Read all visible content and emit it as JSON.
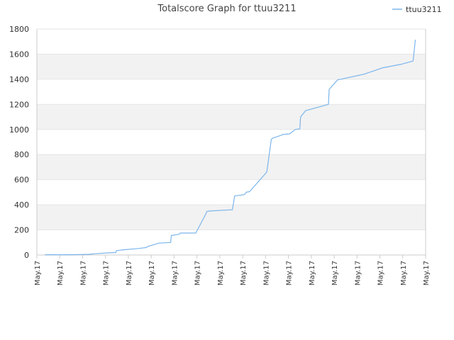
{
  "chart_data": {
    "type": "line",
    "title": "Totalscore Graph for ttuu3211",
    "xlabel": "",
    "ylabel": "",
    "ylim": [
      0,
      1800
    ],
    "yticks": [
      0,
      200,
      400,
      600,
      800,
      1000,
      1200,
      1400,
      1600,
      1800
    ],
    "xtick_labels": [
      "May.17",
      "May.17",
      "May.17",
      "May.17",
      "May.17",
      "May.17",
      "May.17",
      "May.17",
      "May.17",
      "May.17",
      "May.17",
      "May.17",
      "May.17",
      "May.17",
      "May.17",
      "May.17",
      "May.17",
      "May.17"
    ],
    "xlim": [
      0,
      17
    ],
    "grid": true,
    "band_fill": "#f2f2f2",
    "legend_position": "top-right",
    "series": [
      {
        "name": "ttuu3211",
        "color": "#7cb5ec",
        "x": [
          0.35,
          1.5,
          2.2,
          2.25,
          2.55,
          3.1,
          3.45,
          3.48,
          3.8,
          4.45,
          4.8,
          4.82,
          4.85,
          5.35,
          5.85,
          5.88,
          6.2,
          6.25,
          6.27,
          6.95,
          7.4,
          7.42,
          7.5,
          8.5,
          8.55,
          8.65,
          9.05,
          9.1,
          9.15,
          9.3,
          10.05,
          10.1,
          10.25,
          10.3,
          10.7,
          10.75,
          11.05,
          11.3,
          11.5,
          11.53,
          11.75,
          12.75,
          12.78,
          13.15,
          14.3,
          15.1,
          15.95,
          16.45,
          16.48,
          16.55
        ],
        "y": [
          2,
          2,
          5,
          5,
          10,
          17,
          20,
          35,
          42,
          52,
          60,
          65,
          68,
          95,
          100,
          155,
          165,
          170,
          175,
          175,
          330,
          345,
          350,
          360,
          360,
          470,
          480,
          485,
          500,
          505,
          660,
          720,
          920,
          930,
          955,
          960,
          965,
          1000,
          1005,
          1100,
          1150,
          1200,
          1320,
          1395,
          1440,
          1490,
          1520,
          1545,
          1590,
          1715
        ]
      }
    ]
  }
}
